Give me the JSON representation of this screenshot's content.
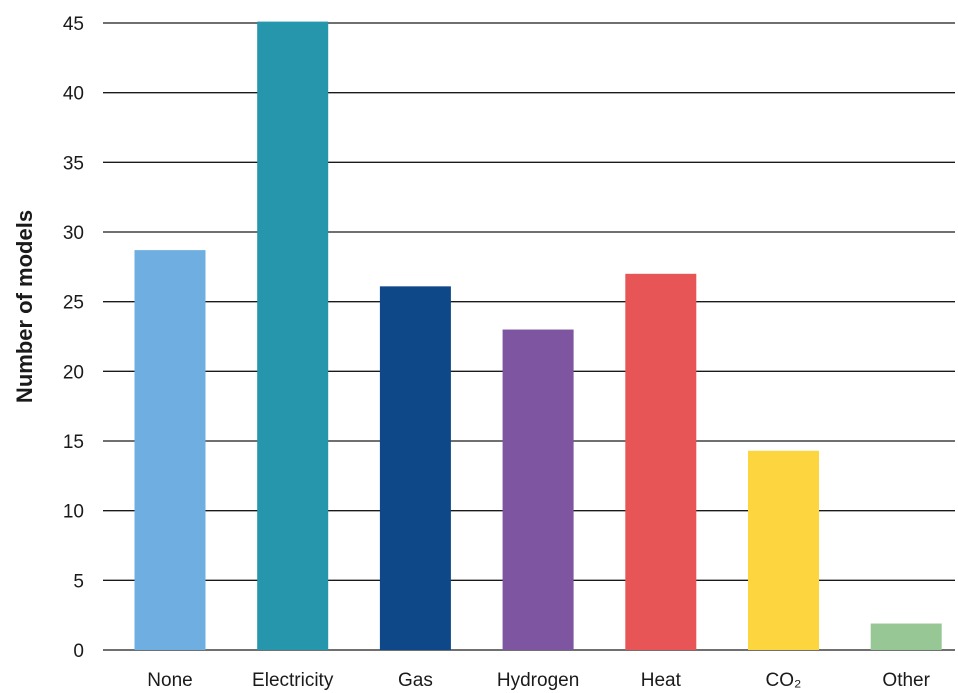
{
  "chart_data": {
    "type": "bar",
    "title": "",
    "xlabel": "",
    "ylabel": "Number of models",
    "ylim": [
      0,
      45
    ],
    "yticks": [
      0,
      5,
      10,
      15,
      20,
      25,
      30,
      35,
      40,
      45
    ],
    "grid": true,
    "categories": [
      "None",
      "Electricity",
      "Gas",
      "Hydrogen",
      "Heat",
      "CO₂",
      "Other"
    ],
    "values": [
      28.7,
      45.1,
      26.1,
      23.0,
      27.0,
      14.3,
      1.9
    ],
    "colors": [
      "#6faee0",
      "#2596ac",
      "#0e4889",
      "#7d55a0",
      "#e85557",
      "#fdd53f",
      "#97c795"
    ]
  }
}
